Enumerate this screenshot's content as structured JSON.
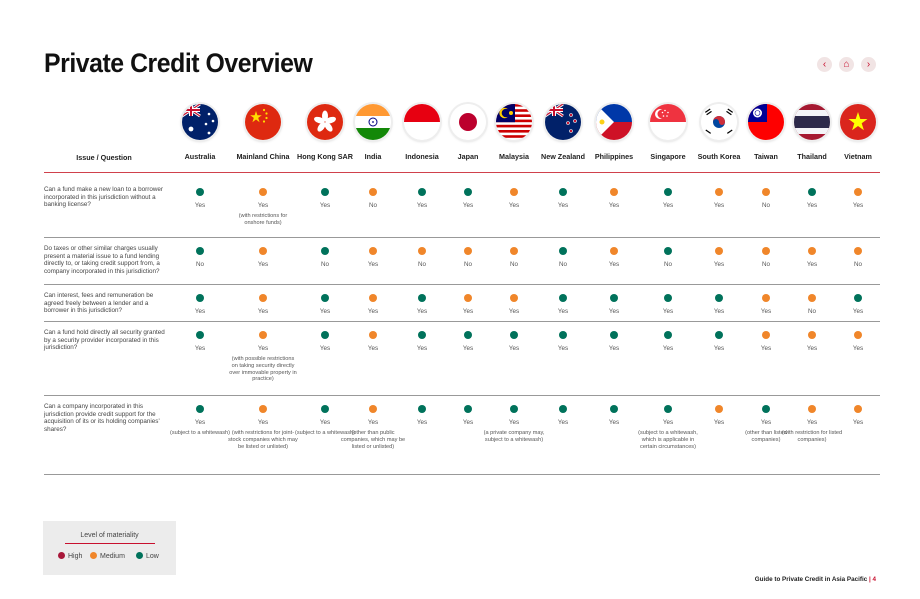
{
  "page_title": "Private Credit Overview",
  "nav": {
    "prev_icon": "‹",
    "home_icon": "⌂",
    "next_icon": "›"
  },
  "colors": {
    "high": "#a8183a",
    "medium": "#f0862a",
    "low": "#00725b",
    "accent": "#c8102e"
  },
  "question_header": "Issue / Question",
  "countries": [
    {
      "name": "Australia"
    },
    {
      "name": "Mainland China"
    },
    {
      "name": "Hong Kong SAR"
    },
    {
      "name": "India"
    },
    {
      "name": "Indonesia"
    },
    {
      "name": "Japan"
    },
    {
      "name": "Malaysia"
    },
    {
      "name": "New Zealand"
    },
    {
      "name": "Philippines"
    },
    {
      "name": "Singapore"
    },
    {
      "name": "South Korea"
    },
    {
      "name": "Taiwan"
    },
    {
      "name": "Thailand"
    },
    {
      "name": "Vietnam"
    }
  ],
  "rows": [
    {
      "question": "Can a fund make a new loan to a borrower incorporated in this jurisdiction without a banking license?",
      "cells": [
        {
          "level": "low",
          "answer": "Yes",
          "note": ""
        },
        {
          "level": "medium",
          "answer": "Yes",
          "note": "(with restrictions for onshore funds)"
        },
        {
          "level": "low",
          "answer": "Yes",
          "note": ""
        },
        {
          "level": "medium",
          "answer": "No",
          "note": ""
        },
        {
          "level": "low",
          "answer": "Yes",
          "note": ""
        },
        {
          "level": "low",
          "answer": "Yes",
          "note": ""
        },
        {
          "level": "medium",
          "answer": "Yes",
          "note": ""
        },
        {
          "level": "low",
          "answer": "Yes",
          "note": ""
        },
        {
          "level": "medium",
          "answer": "Yes",
          "note": ""
        },
        {
          "level": "low",
          "answer": "Yes",
          "note": ""
        },
        {
          "level": "medium",
          "answer": "Yes",
          "note": ""
        },
        {
          "level": "medium",
          "answer": "No",
          "note": ""
        },
        {
          "level": "low",
          "answer": "Yes",
          "note": ""
        },
        {
          "level": "medium",
          "answer": "Yes",
          "note": ""
        }
      ]
    },
    {
      "question": "Do taxes or other similar charges usually present a material issue to a fund lending directly to, or taking credit support from, a company incorporated in this jurisdiction?",
      "cells": [
        {
          "level": "low",
          "answer": "No",
          "note": ""
        },
        {
          "level": "medium",
          "answer": "Yes",
          "note": ""
        },
        {
          "level": "low",
          "answer": "No",
          "note": ""
        },
        {
          "level": "medium",
          "answer": "Yes",
          "note": ""
        },
        {
          "level": "medium",
          "answer": "No",
          "note": ""
        },
        {
          "level": "medium",
          "answer": "No",
          "note": ""
        },
        {
          "level": "medium",
          "answer": "No",
          "note": ""
        },
        {
          "level": "low",
          "answer": "No",
          "note": ""
        },
        {
          "level": "medium",
          "answer": "Yes",
          "note": ""
        },
        {
          "level": "low",
          "answer": "No",
          "note": ""
        },
        {
          "level": "medium",
          "answer": "Yes",
          "note": ""
        },
        {
          "level": "medium",
          "answer": "No",
          "note": ""
        },
        {
          "level": "medium",
          "answer": "Yes",
          "note": ""
        },
        {
          "level": "medium",
          "answer": "No",
          "note": ""
        }
      ]
    },
    {
      "question": "Can interest, fees and remuneration be agreed freely between a lender and a borrower in this jurisdiction?",
      "cells": [
        {
          "level": "low",
          "answer": "Yes",
          "note": ""
        },
        {
          "level": "medium",
          "answer": "Yes",
          "note": ""
        },
        {
          "level": "low",
          "answer": "Yes",
          "note": ""
        },
        {
          "level": "medium",
          "answer": "Yes",
          "note": ""
        },
        {
          "level": "low",
          "answer": "Yes",
          "note": ""
        },
        {
          "level": "medium",
          "answer": "Yes",
          "note": ""
        },
        {
          "level": "medium",
          "answer": "Yes",
          "note": ""
        },
        {
          "level": "low",
          "answer": "Yes",
          "note": ""
        },
        {
          "level": "low",
          "answer": "Yes",
          "note": ""
        },
        {
          "level": "low",
          "answer": "Yes",
          "note": ""
        },
        {
          "level": "low",
          "answer": "Yes",
          "note": ""
        },
        {
          "level": "medium",
          "answer": "Yes",
          "note": ""
        },
        {
          "level": "medium",
          "answer": "No",
          "note": ""
        },
        {
          "level": "low",
          "answer": "Yes",
          "note": ""
        }
      ]
    },
    {
      "question": "Can a fund hold directly all security granted by a security provider incorporated in this jurisdiction?",
      "cells": [
        {
          "level": "low",
          "answer": "Yes",
          "note": ""
        },
        {
          "level": "medium",
          "answer": "Yes",
          "note": "(with possible restrictions on taking security directly over immovable property in practice)"
        },
        {
          "level": "low",
          "answer": "Yes",
          "note": ""
        },
        {
          "level": "medium",
          "answer": "Yes",
          "note": ""
        },
        {
          "level": "low",
          "answer": "Yes",
          "note": ""
        },
        {
          "level": "low",
          "answer": "Yes",
          "note": ""
        },
        {
          "level": "low",
          "answer": "Yes",
          "note": ""
        },
        {
          "level": "low",
          "answer": "Yes",
          "note": ""
        },
        {
          "level": "low",
          "answer": "Yes",
          "note": ""
        },
        {
          "level": "low",
          "answer": "Yes",
          "note": ""
        },
        {
          "level": "low",
          "answer": "Yes",
          "note": ""
        },
        {
          "level": "medium",
          "answer": "Yes",
          "note": ""
        },
        {
          "level": "medium",
          "answer": "Yes",
          "note": ""
        },
        {
          "level": "medium",
          "answer": "Yes",
          "note": ""
        }
      ]
    },
    {
      "question": "Can a company incorporated in this jurisdiction provide credit support for the acquisition of its or its holding companies' shares?",
      "cells": [
        {
          "level": "low",
          "answer": "Yes",
          "note": "(subject to a whitewash)"
        },
        {
          "level": "medium",
          "answer": "Yes",
          "note": "(with restrictions for joint-stock companies which may be listed or unlisted)"
        },
        {
          "level": "low",
          "answer": "Yes",
          "note": "(subject to a whitewash)"
        },
        {
          "level": "medium",
          "answer": "Yes",
          "note": "(other than public companies, which may be listed or unlisted)"
        },
        {
          "level": "low",
          "answer": "Yes",
          "note": ""
        },
        {
          "level": "low",
          "answer": "Yes",
          "note": ""
        },
        {
          "level": "low",
          "answer": "Yes",
          "note": "(a private company may, subject to a whitewash)"
        },
        {
          "level": "low",
          "answer": "Yes",
          "note": ""
        },
        {
          "level": "low",
          "answer": "Yes",
          "note": ""
        },
        {
          "level": "low",
          "answer": "Yes",
          "note": "(subject to a whitewash, which is applicable in certain circumstances)"
        },
        {
          "level": "medium",
          "answer": "Yes",
          "note": ""
        },
        {
          "level": "low",
          "answer": "Yes",
          "note": "(other than listed companies)"
        },
        {
          "level": "medium",
          "answer": "Yes",
          "note": "(with restriction for listed companies)"
        },
        {
          "level": "medium",
          "answer": "Yes",
          "note": ""
        }
      ]
    }
  ],
  "legend": {
    "title": "Level of materiality",
    "items": [
      {
        "level": "high",
        "label": "High"
      },
      {
        "level": "medium",
        "label": "Medium"
      },
      {
        "level": "low",
        "label": "Low"
      }
    ]
  },
  "footer": {
    "guide": "Guide to Private Credit in Asia Pacific",
    "separator": "|",
    "page": "4"
  }
}
